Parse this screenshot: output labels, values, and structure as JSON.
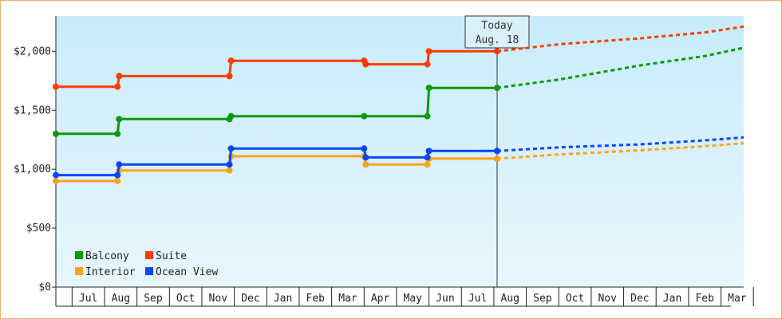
{
  "chart_data": {
    "type": "line",
    "title": "",
    "xlabel": "",
    "ylabel": "",
    "ylim": [
      0,
      2300
    ],
    "y_ticks": [
      {
        "value": 0,
        "label": "$0"
      },
      {
        "value": 500,
        "label": "$500"
      },
      {
        "value": 1000,
        "label": "$1,000"
      },
      {
        "value": 1500,
        "label": "$1,500"
      },
      {
        "value": 2000,
        "label": "$2,000"
      }
    ],
    "x_range": [
      -2,
      19.2
    ],
    "x_months": [
      "Jul",
      "Aug",
      "Sep",
      "Oct",
      "Nov",
      "Dec",
      "Jan",
      "Feb",
      "Mar",
      "Apr",
      "May",
      "Jun",
      "Jul",
      "Aug",
      "Sep",
      "Oct",
      "Nov",
      "Dec",
      "Jan",
      "Feb",
      "Mar"
    ],
    "today_marker": {
      "title": "Today",
      "date": "Aug. 18",
      "x": 11.6
    },
    "colors": {
      "background_top": "#c8ecfa",
      "background_bottom": "#e8f6fd"
    },
    "legend_position": "bottom-left",
    "series": [
      {
        "name": "Balcony",
        "color": "#0a9a0a",
        "steps": [
          [
            -2,
            1300
          ],
          [
            -0.1,
            1300
          ],
          [
            -0.05,
            1425
          ],
          [
            3.35,
            1425
          ],
          [
            3.4,
            1450
          ],
          [
            7.5,
            1450
          ],
          [
            9.45,
            1450
          ],
          [
            9.5,
            1690
          ],
          [
            11.6,
            1690
          ]
        ],
        "markers": [
          [
            -2,
            1300
          ],
          [
            -0.1,
            1300
          ],
          [
            -0.05,
            1425
          ],
          [
            3.35,
            1425
          ],
          [
            3.4,
            1450
          ],
          [
            7.5,
            1450
          ],
          [
            9.45,
            1450
          ],
          [
            9.5,
            1690
          ],
          [
            11.6,
            1690
          ]
        ],
        "forecast": [
          [
            11.6,
            1690
          ],
          [
            13.5,
            1760
          ],
          [
            16,
            1880
          ],
          [
            18,
            1960
          ],
          [
            19.2,
            2030
          ]
        ]
      },
      {
        "name": "Suite",
        "color": "#ff3b00",
        "steps": [
          [
            -2,
            1700
          ],
          [
            -0.1,
            1700
          ],
          [
            -0.05,
            1790
          ],
          [
            3.35,
            1790
          ],
          [
            3.4,
            1920
          ],
          [
            7.5,
            1920
          ],
          [
            7.55,
            1890
          ],
          [
            9.45,
            1890
          ],
          [
            9.5,
            2000
          ],
          [
            11.6,
            2000
          ]
        ],
        "markers": [
          [
            -2,
            1700
          ],
          [
            -0.1,
            1700
          ],
          [
            -0.05,
            1790
          ],
          [
            3.35,
            1790
          ],
          [
            3.4,
            1920
          ],
          [
            7.5,
            1920
          ],
          [
            7.55,
            1890
          ],
          [
            9.45,
            1890
          ],
          [
            9.5,
            2000
          ],
          [
            11.6,
            2000
          ]
        ],
        "forecast": [
          [
            11.6,
            2000
          ],
          [
            13.5,
            2060
          ],
          [
            16,
            2110
          ],
          [
            18,
            2160
          ],
          [
            19.2,
            2210
          ]
        ]
      },
      {
        "name": "Interior",
        "color": "#ffa21a",
        "steps": [
          [
            -2,
            900
          ],
          [
            -0.1,
            900
          ],
          [
            -0.05,
            990
          ],
          [
            3.35,
            990
          ],
          [
            3.4,
            1110
          ],
          [
            7.5,
            1110
          ],
          [
            7.55,
            1040
          ],
          [
            9.45,
            1040
          ],
          [
            9.5,
            1090
          ],
          [
            11.6,
            1090
          ]
        ],
        "markers": [
          [
            -2,
            900
          ],
          [
            -0.1,
            900
          ],
          [
            -0.05,
            990
          ],
          [
            3.35,
            990
          ],
          [
            3.4,
            1110
          ],
          [
            7.5,
            1110
          ],
          [
            7.55,
            1040
          ],
          [
            9.45,
            1040
          ],
          [
            9.5,
            1090
          ],
          [
            11.6,
            1090
          ]
        ],
        "forecast": [
          [
            11.6,
            1090
          ],
          [
            13.5,
            1125
          ],
          [
            16,
            1160
          ],
          [
            18,
            1195
          ],
          [
            19.2,
            1220
          ]
        ]
      },
      {
        "name": "Ocean View",
        "color": "#0a46ff",
        "steps": [
          [
            -2,
            950
          ],
          [
            -0.1,
            950
          ],
          [
            -0.05,
            1040
          ],
          [
            3.35,
            1040
          ],
          [
            3.4,
            1175
          ],
          [
            7.5,
            1175
          ],
          [
            7.55,
            1100
          ],
          [
            9.45,
            1100
          ],
          [
            9.5,
            1155
          ],
          [
            11.6,
            1155
          ]
        ],
        "markers": [
          [
            -2,
            950
          ],
          [
            -0.1,
            950
          ],
          [
            -0.05,
            1040
          ],
          [
            3.35,
            1040
          ],
          [
            3.4,
            1175
          ],
          [
            7.5,
            1175
          ],
          [
            7.55,
            1100
          ],
          [
            9.45,
            1100
          ],
          [
            9.5,
            1155
          ],
          [
            11.6,
            1155
          ]
        ],
        "forecast": [
          [
            11.6,
            1155
          ],
          [
            13.5,
            1185
          ],
          [
            16,
            1210
          ],
          [
            18,
            1245
          ],
          [
            19.2,
            1270
          ]
        ]
      }
    ]
  }
}
